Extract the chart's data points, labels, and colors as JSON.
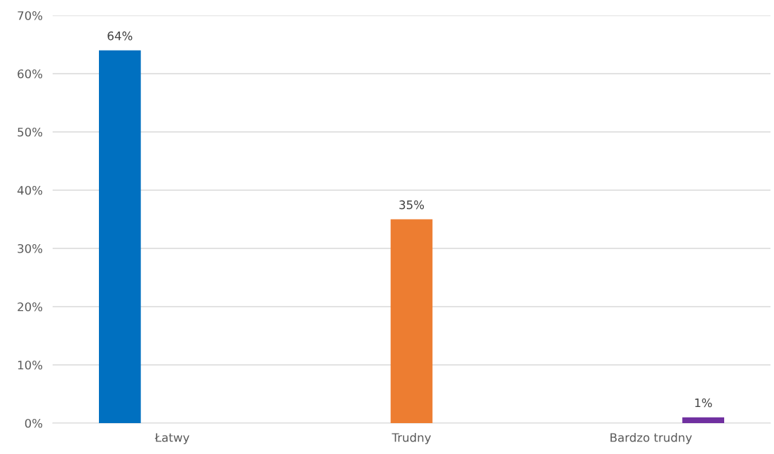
{
  "chart_data": {
    "type": "bar",
    "categories": [
      "Łatwy",
      "Trudny",
      "Bardzo trudny"
    ],
    "series": [
      {
        "color": "#0070c0",
        "values": [
          64,
          null,
          null
        ]
      },
      {
        "color": "#ed7d31",
        "values": [
          null,
          35,
          null
        ]
      },
      {
        "color": "#7030a0",
        "values": [
          null,
          null,
          1
        ]
      }
    ],
    "ylim": [
      0,
      70
    ],
    "yticks": [
      {
        "value": 0,
        "label": "0%"
      },
      {
        "value": 10,
        "label": "10%"
      },
      {
        "value": 20,
        "label": "20%"
      },
      {
        "value": 30,
        "label": "30%"
      },
      {
        "value": 40,
        "label": "40%"
      },
      {
        "value": 50,
        "label": "50%"
      },
      {
        "value": 60,
        "label": "60%"
      },
      {
        "value": 70,
        "label": "70%"
      }
    ],
    "value_labels": [
      "64%",
      "35%",
      "1%"
    ],
    "grid": "y",
    "legend": false
  }
}
